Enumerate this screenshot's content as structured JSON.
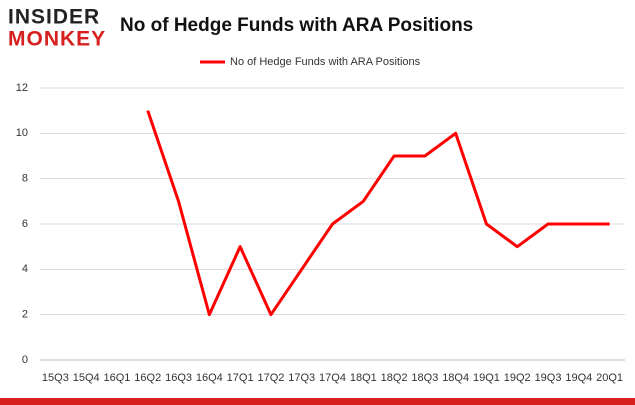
{
  "logo": {
    "top": "INSIDER",
    "bottom": "MONKEY"
  },
  "chart_data": {
    "type": "line",
    "title": "No of Hedge Funds with ARA Positions",
    "categories": [
      "15Q3",
      "15Q4",
      "16Q1",
      "16Q2",
      "16Q3",
      "16Q4",
      "17Q1",
      "17Q2",
      "17Q3",
      "17Q4",
      "18Q1",
      "18Q2",
      "18Q3",
      "18Q4",
      "19Q1",
      "19Q2",
      "19Q3",
      "19Q4",
      "20Q1"
    ],
    "series": [
      {
        "name": "No of Hedge Funds with ARA Positions",
        "color": "#ff0000",
        "values": [
          null,
          null,
          null,
          11,
          7,
          2,
          5,
          2,
          4,
          6,
          7,
          9,
          9,
          10,
          6,
          5,
          6,
          6,
          6
        ]
      }
    ],
    "ylim": [
      0,
      12
    ],
    "yticks": [
      0,
      2,
      4,
      6,
      8,
      10,
      12
    ],
    "grid": true,
    "legend": "top"
  }
}
